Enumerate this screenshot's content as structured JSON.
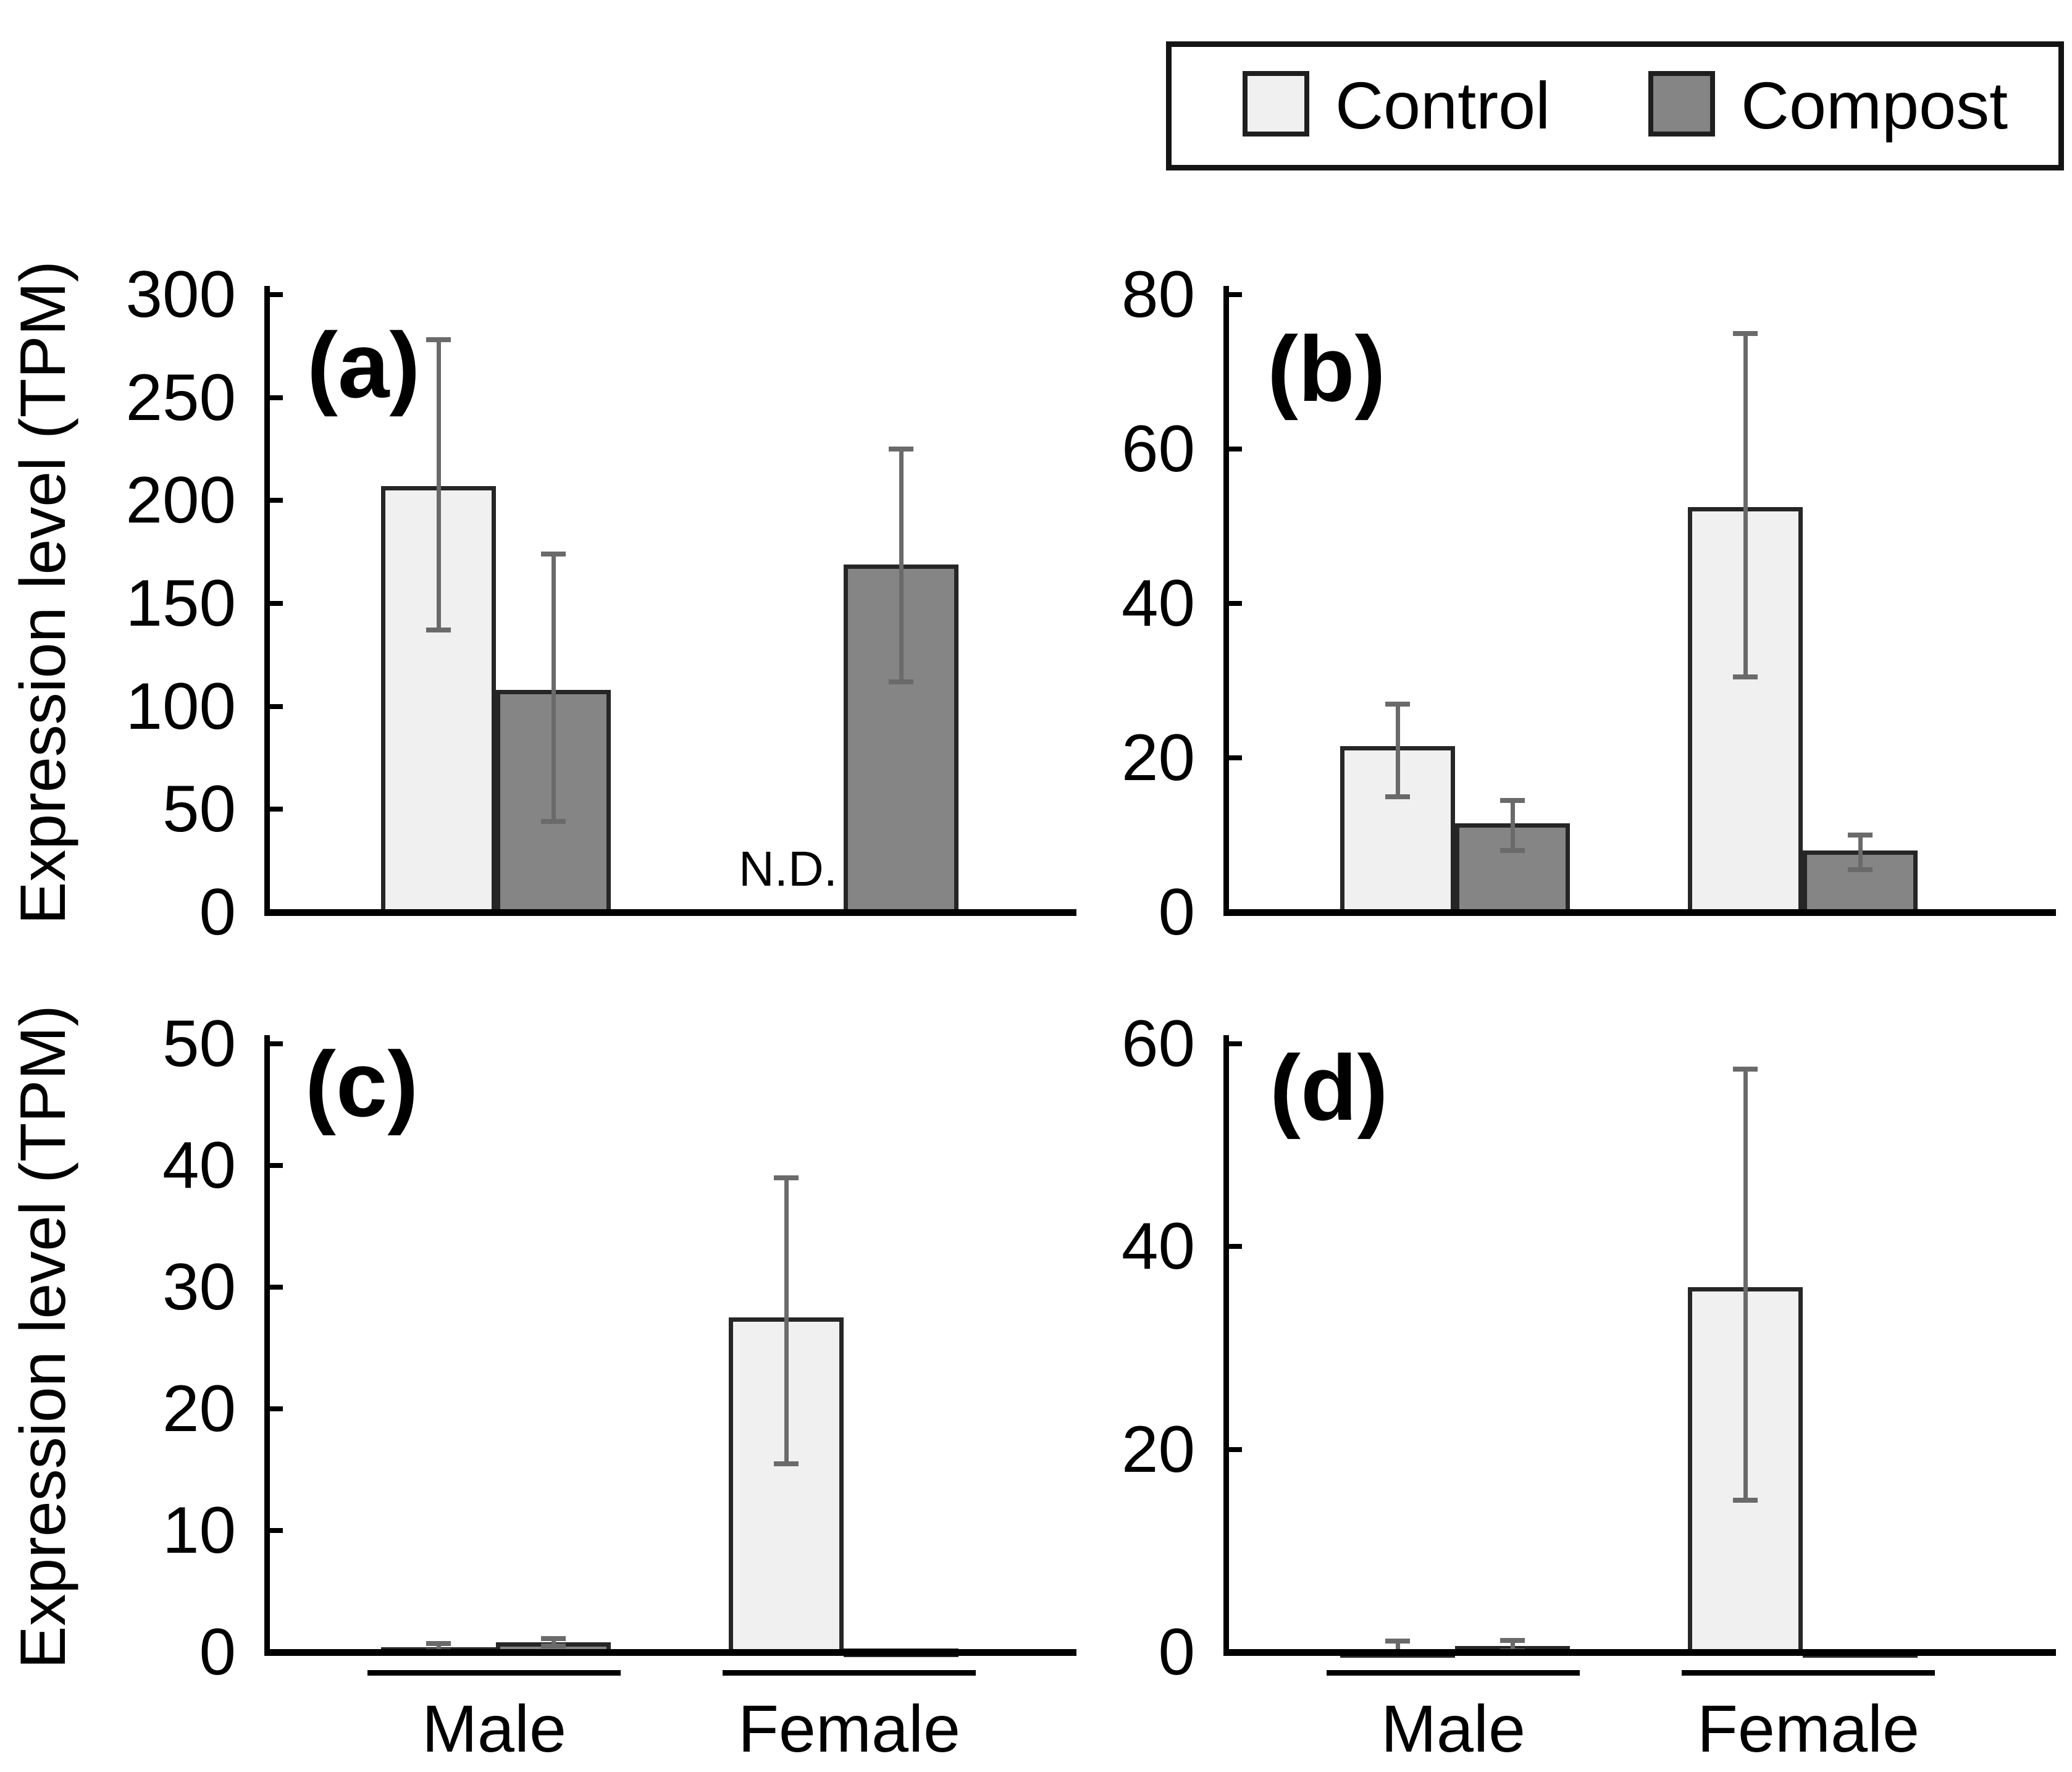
{
  "figure": {
    "ylabel": "Expression level (TPM)",
    "x_categories": [
      "Male",
      "Female"
    ]
  },
  "legend": {
    "items": [
      {
        "label": "Control",
        "color": "#f0f0f0"
      },
      {
        "label": "Compost",
        "color": "#858585"
      }
    ],
    "position": "top-right"
  },
  "colors": {
    "control_fill": "#f0f0f0",
    "compost_fill": "#858585",
    "bar_border": "#262626",
    "error_bar": "#6a6a6a",
    "axis": "#000000",
    "text": "#000000"
  },
  "chart_data": [
    {
      "type": "bar",
      "panel_label": "(a)",
      "ylabel": "Expression level (TPM)",
      "ylim": [
        0,
        300
      ],
      "yticks": [
        0,
        50,
        100,
        150,
        200,
        250,
        300
      ],
      "categories": [
        "Male",
        "Female"
      ],
      "grid": false,
      "series": [
        {
          "name": "Control",
          "values": [
            207,
            null
          ],
          "error_low": [
            137,
            null
          ],
          "error_high": [
            278,
            null
          ]
        },
        {
          "name": "Compost",
          "values": [
            108,
            169
          ],
          "error_low": [
            44,
            112
          ],
          "error_high": [
            174,
            225
          ]
        }
      ],
      "annotation": {
        "text": "N.D.",
        "category": "Female",
        "series": "Control"
      }
    },
    {
      "type": "bar",
      "panel_label": "(b)",
      "ylim": [
        0,
        80
      ],
      "yticks": [
        0,
        20,
        40,
        60,
        80
      ],
      "categories": [
        "Male",
        "Female"
      ],
      "grid": false,
      "series": [
        {
          "name": "Control",
          "values": [
            21.5,
            52.5
          ],
          "error_low": [
            15,
            30.5
          ],
          "error_high": [
            27,
            75
          ]
        },
        {
          "name": "Compost",
          "values": [
            11.5,
            8
          ],
          "error_low": [
            8,
            5.5
          ],
          "error_high": [
            14.5,
            10
          ]
        }
      ]
    },
    {
      "type": "bar",
      "panel_label": "(c)",
      "ylabel": "Expression level (TPM)",
      "ylim": [
        0,
        50
      ],
      "yticks": [
        0,
        10,
        20,
        30,
        40,
        50
      ],
      "categories": [
        "Male",
        "Female"
      ],
      "grid": false,
      "series": [
        {
          "name": "Control",
          "values": [
            0.4,
            27.5
          ],
          "error_low": [
            0.1,
            15.5
          ],
          "error_high": [
            0.7,
            39
          ]
        },
        {
          "name": "Compost",
          "values": [
            0.8,
            0.3
          ],
          "error_low": [
            0.5,
            null
          ],
          "error_high": [
            1.1,
            null
          ]
        }
      ]
    },
    {
      "type": "bar",
      "panel_label": "(d)",
      "ylim": [
        0,
        60
      ],
      "yticks": [
        0,
        20,
        40,
        60
      ],
      "categories": [
        "Male",
        "Female"
      ],
      "grid": false,
      "series": [
        {
          "name": "Control",
          "values": [
            0.25,
            36
          ],
          "error_low": [
            0.05,
            15
          ],
          "error_high": [
            1.1,
            57.5
          ]
        },
        {
          "name": "Compost",
          "values": [
            0.6,
            0.3
          ],
          "error_low": [
            0.1,
            null
          ],
          "error_high": [
            1.15,
            null
          ]
        }
      ]
    }
  ]
}
